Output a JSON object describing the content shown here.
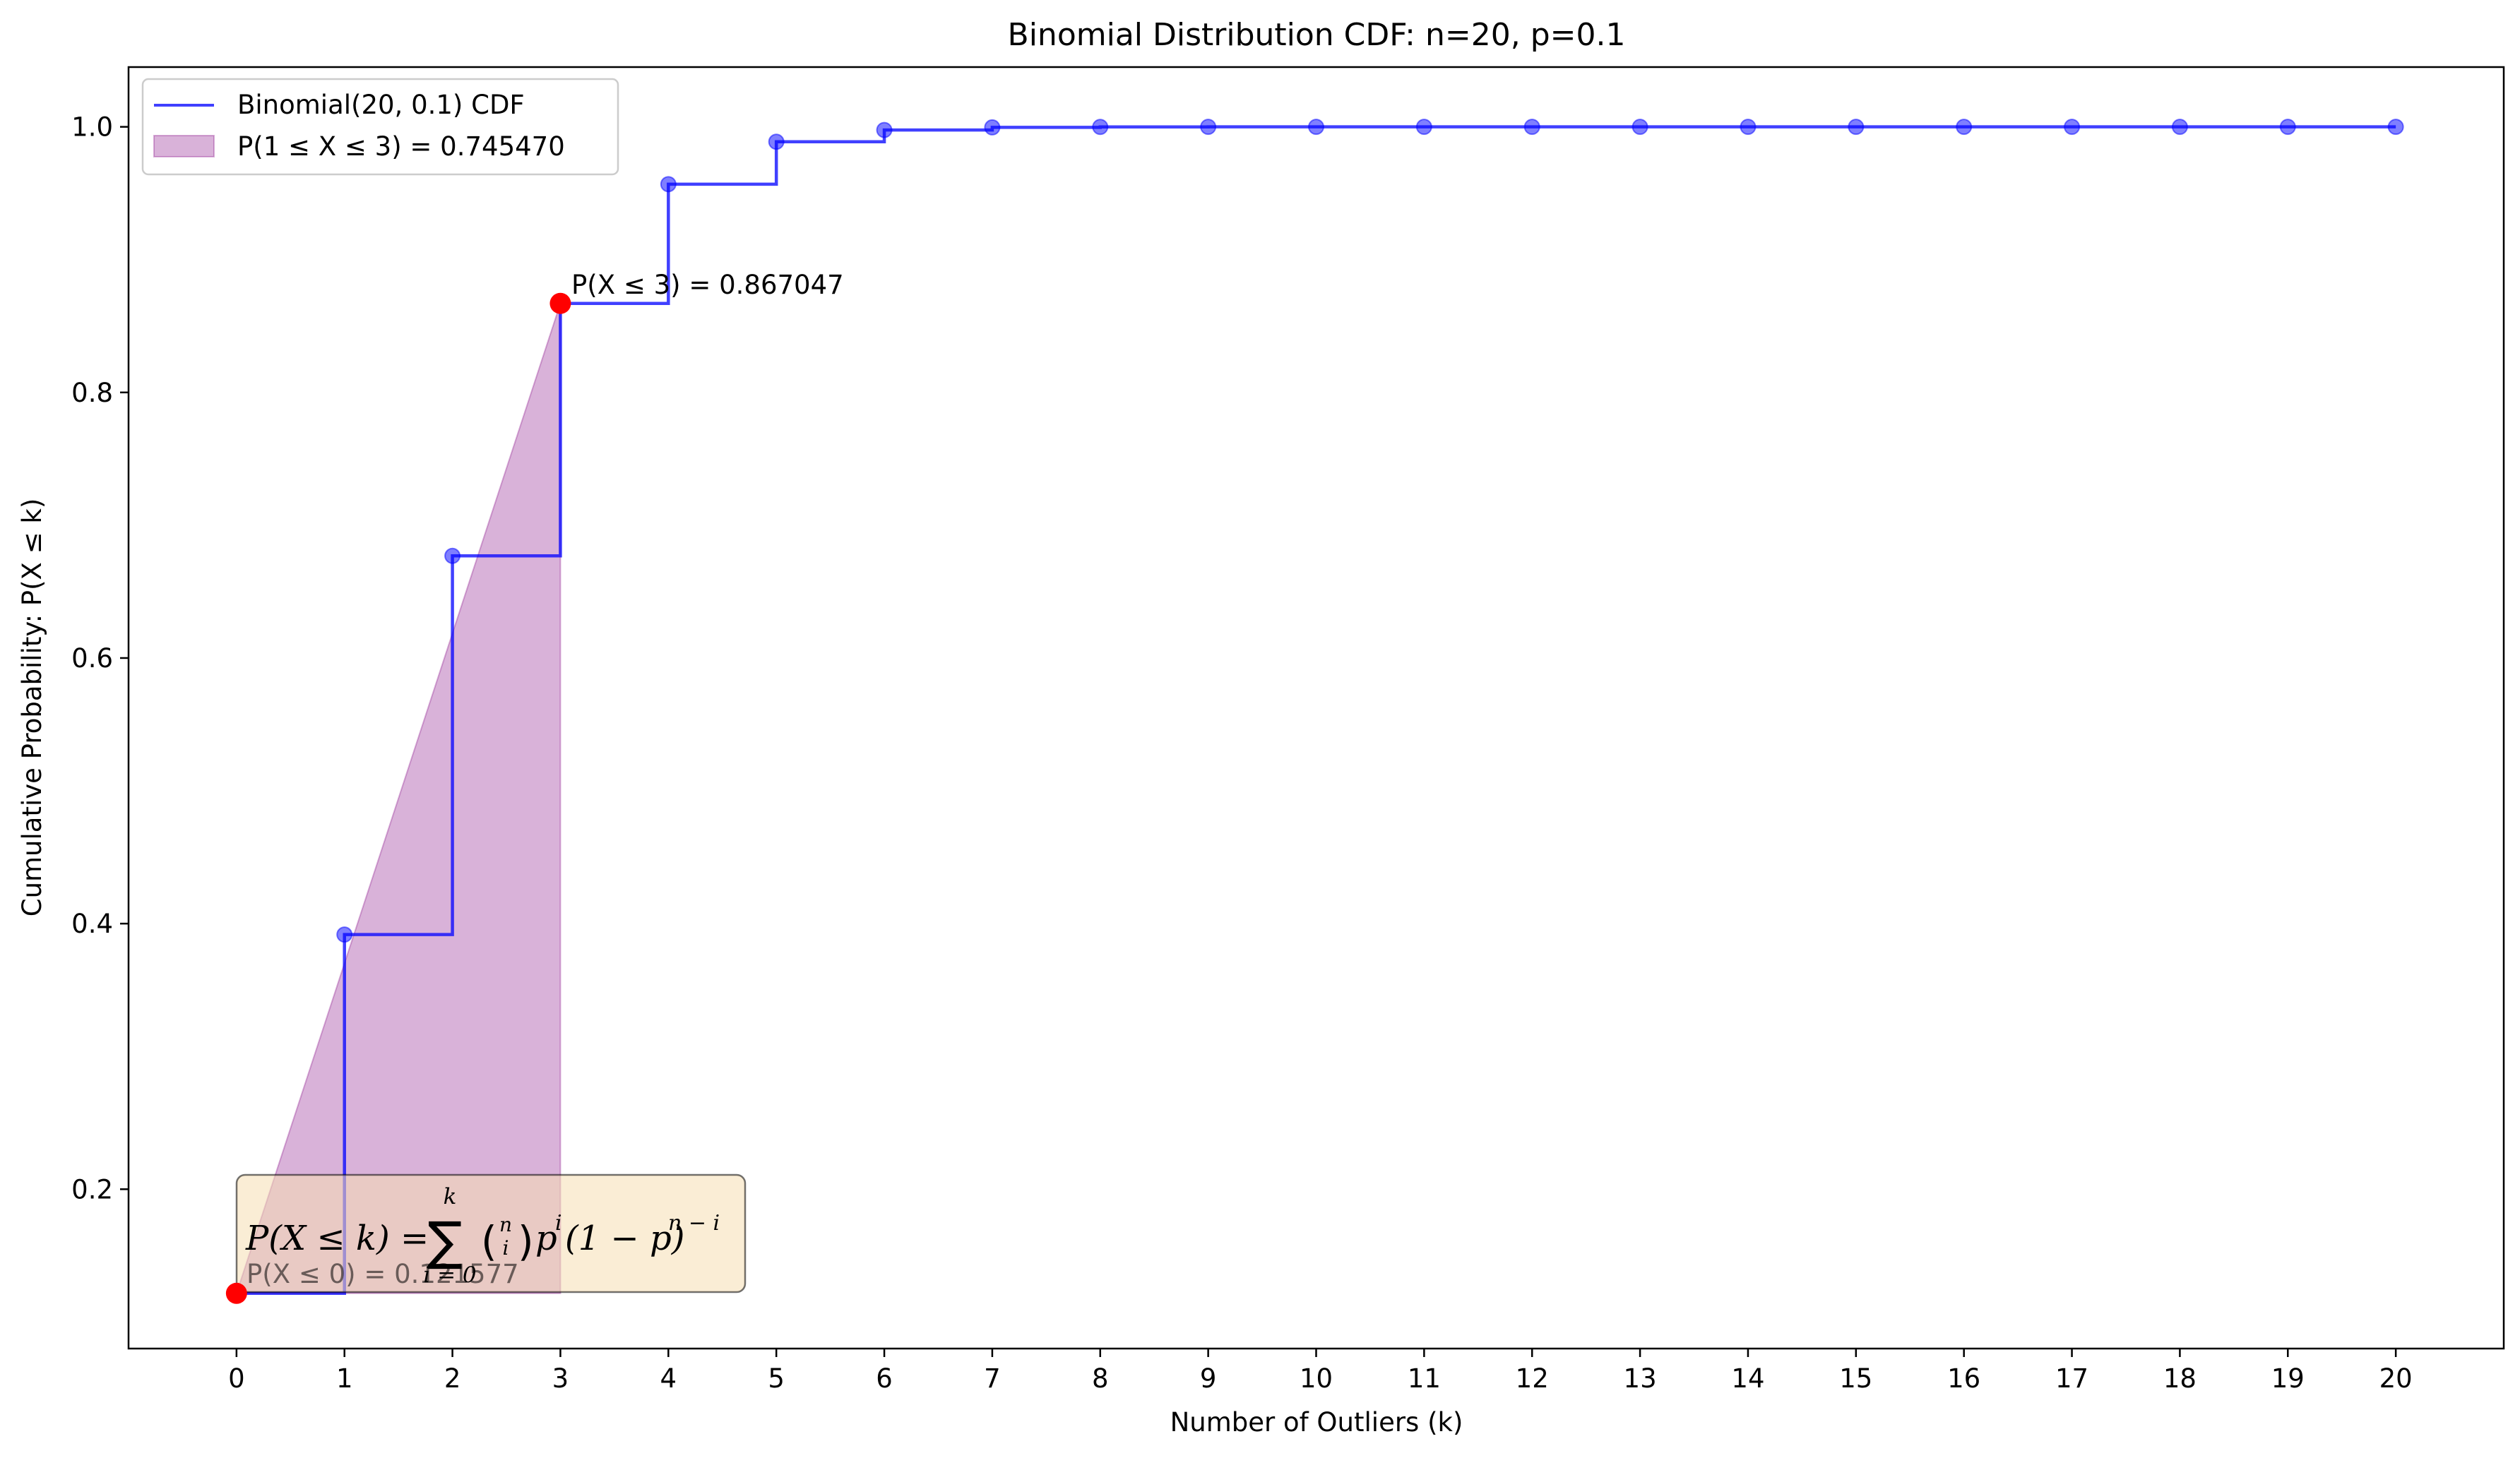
{
  "chart_data": {
    "type": "line",
    "title": "Binomial Distribution CDF: n=20, p=0.1",
    "xlabel": "Number of Outliers (k)",
    "ylabel": "Cumulative Probability: P(X ≤ k)",
    "xlim": [
      -1,
      21
    ],
    "ylim": [
      0.08,
      1.045
    ],
    "x_ticks": [
      0,
      1,
      2,
      3,
      4,
      5,
      6,
      7,
      8,
      9,
      10,
      11,
      12,
      13,
      14,
      15,
      16,
      17,
      18,
      19,
      20
    ],
    "y_ticks": [
      0.2,
      0.4,
      0.6,
      0.8,
      1.0
    ],
    "y_tick_labels": [
      "0.2",
      "0.4",
      "0.6",
      "0.8",
      "1.0"
    ],
    "grid": false,
    "legend_position": "top-left",
    "series": [
      {
        "name": "Binomial(20, 0.1) CDF",
        "style": "step-post with markers",
        "color": "#0000ff",
        "x": [
          0,
          1,
          2,
          3,
          4,
          5,
          6,
          7,
          8,
          9,
          10,
          11,
          12,
          13,
          14,
          15,
          16,
          17,
          18,
          19,
          20
        ],
        "y": [
          0.121577,
          0.391747,
          0.676927,
          0.867047,
          0.956826,
          0.988747,
          0.997614,
          0.999584,
          0.99994,
          0.999993,
          0.999999,
          1.0,
          1.0,
          1.0,
          1.0,
          1.0,
          1.0,
          1.0,
          1.0,
          1.0,
          1.0
        ]
      }
    ],
    "fill_region": {
      "name": "P(1 ≤ X ≤ 3) = 0.745470",
      "color": "#800080",
      "x": [
        0,
        3
      ],
      "y_upper": [
        0.121577,
        0.867047
      ],
      "y_lower": 0.121577
    },
    "highlight_points": [
      {
        "x": 0,
        "y": 0.121577,
        "label": "P(X ≤ 0) = 0.121577",
        "color": "#ff0000"
      },
      {
        "x": 3,
        "y": 0.867047,
        "label": "P(X ≤ 3) = 0.867047",
        "color": "#ff0000"
      }
    ],
    "formula_box": {
      "lhs": "P(X ≤ k) = ",
      "sum_symbol": "∑",
      "sum_upper": "k",
      "sum_lower": "i = 0",
      "binom_top": "n",
      "binom_bottom": "i",
      "rhs_p": "p",
      "rhs_p_exp": "i",
      "rhs_q": "(1 − p)",
      "rhs_q_exp": "n − i"
    }
  }
}
